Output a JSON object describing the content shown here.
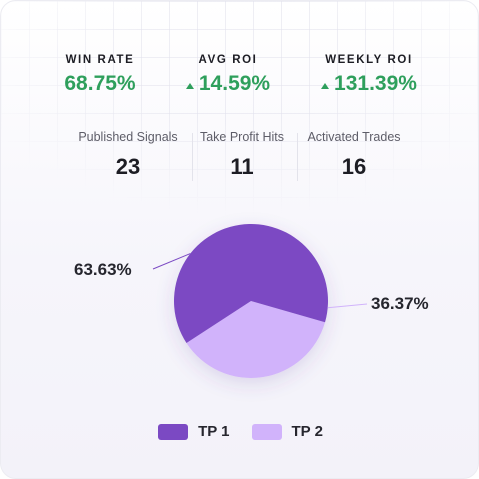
{
  "kpis": [
    {
      "label": "WIN RATE",
      "value": "68.75%",
      "trend_icon": null
    },
    {
      "label": "AVG ROI",
      "value": "14.59%",
      "trend_icon": "triangle-up-icon"
    },
    {
      "label": "WEEKLY ROI",
      "value": "131.39%",
      "trend_icon": "triangle-up-icon"
    }
  ],
  "stats": [
    {
      "label": "Published Signals",
      "value": "23"
    },
    {
      "label": "Take Profit Hits",
      "value": "11"
    },
    {
      "label": "Activated Trades",
      "value": "16"
    }
  ],
  "colors": {
    "positive": "#2e9f5c",
    "tp1": "#7b49c3",
    "tp2": "#d1b3fb"
  },
  "chart_data": {
    "type": "pie",
    "slices": [
      {
        "name": "TP 1",
        "value": 63.63,
        "label": "63.63%",
        "color": "#7b49c3"
      },
      {
        "name": "TP 2",
        "value": 36.37,
        "label": "36.37%",
        "color": "#d1b3fb"
      }
    ],
    "legend_position": "bottom"
  }
}
